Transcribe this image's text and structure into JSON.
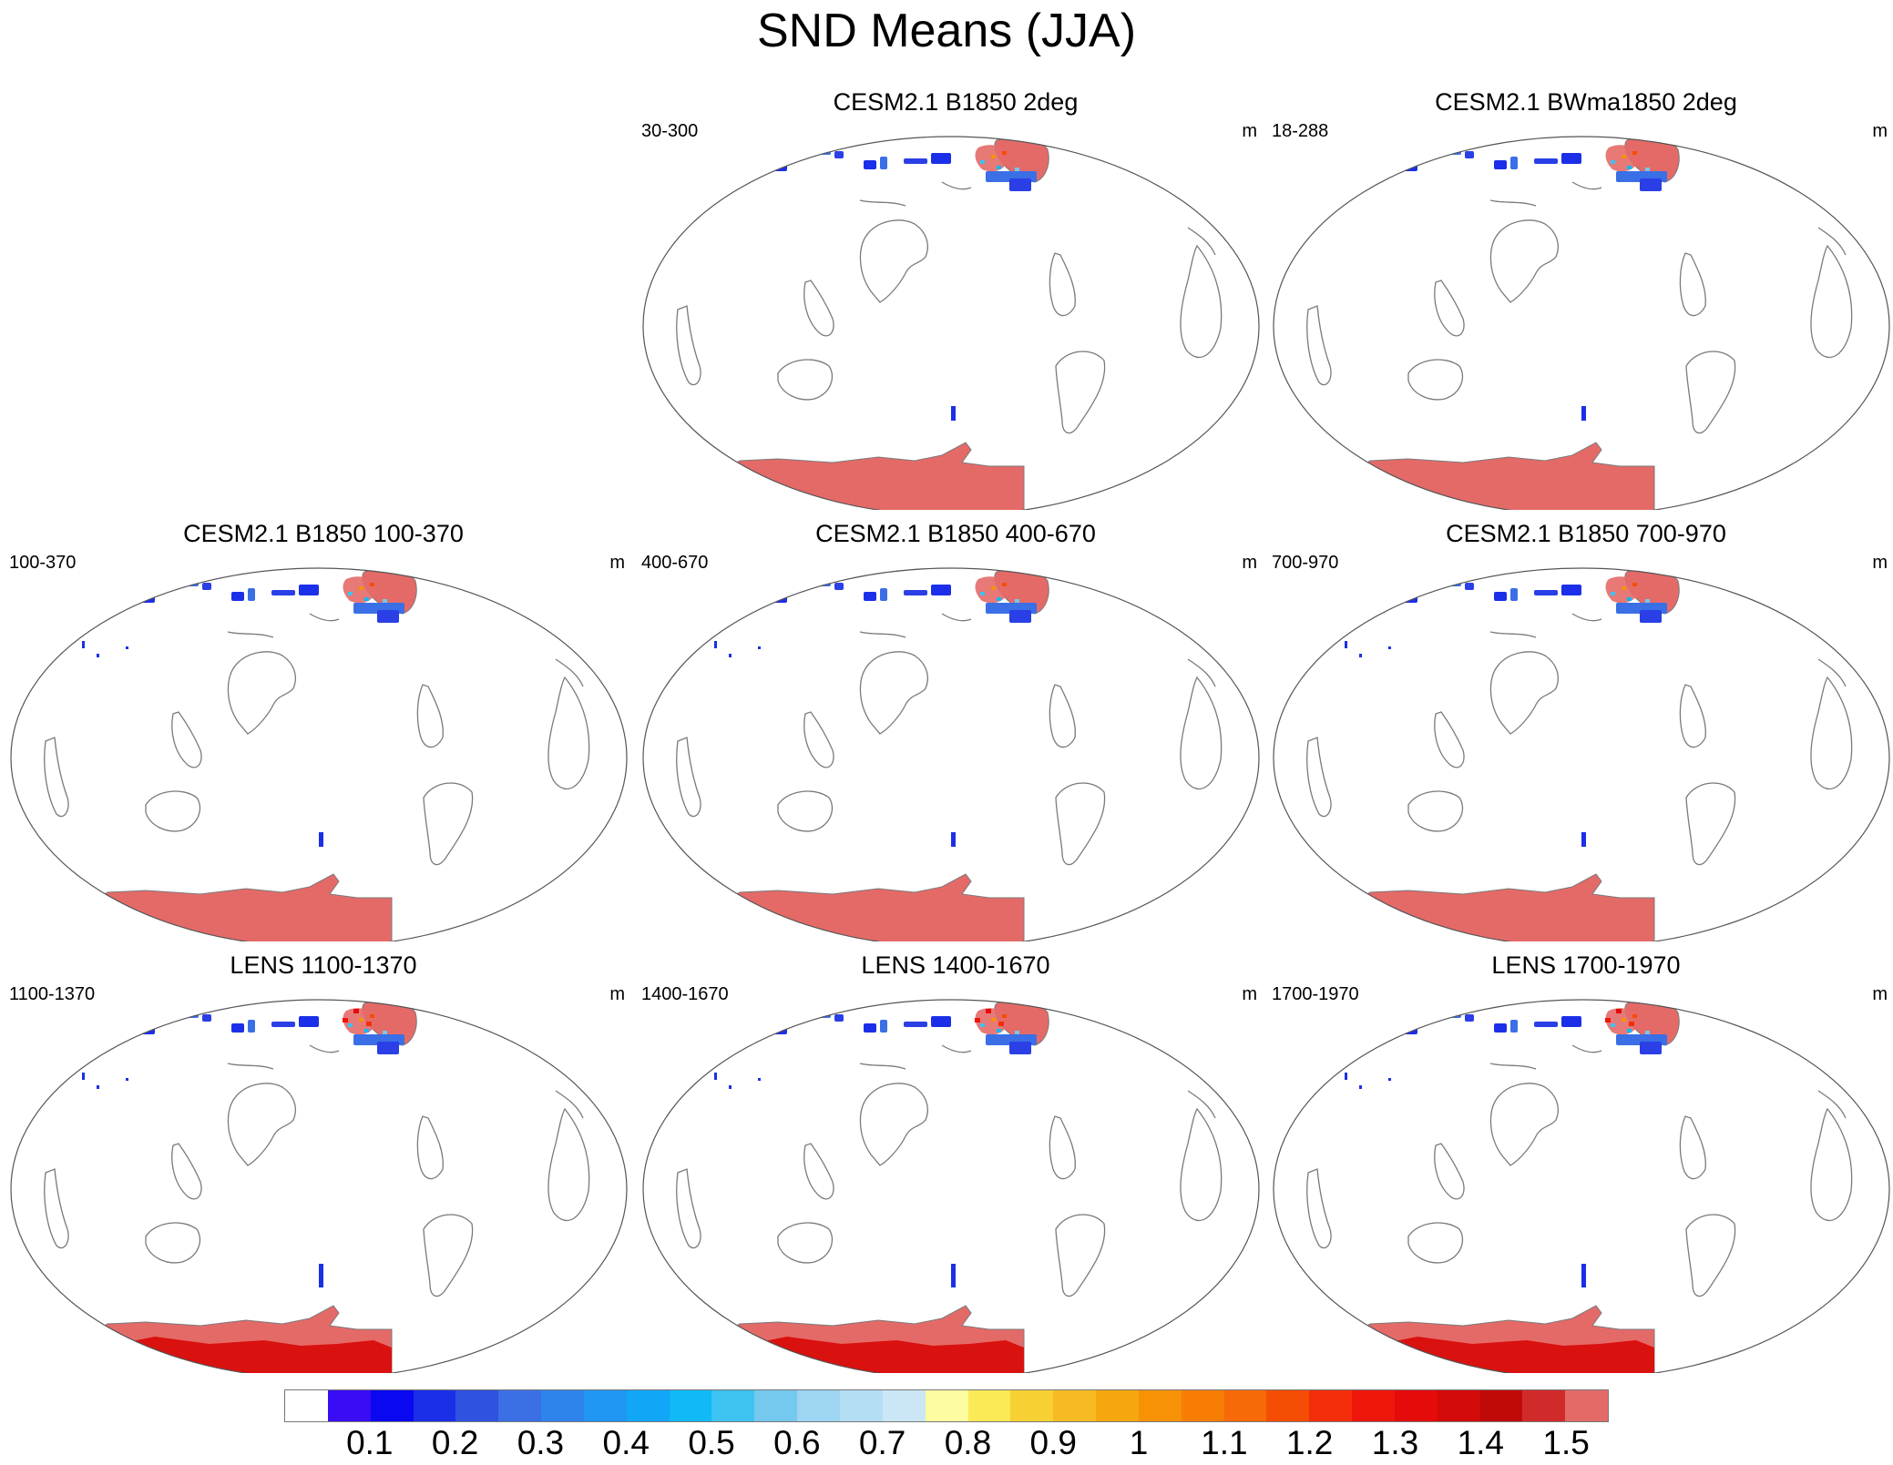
{
  "title": "SND Means (JJA)",
  "panels": [
    {
      "title": "",
      "range": "",
      "units": "",
      "empty": true
    },
    {
      "title": "CESM2.1 B1850 2deg",
      "range": "30-300",
      "units": "m",
      "variant": "A"
    },
    {
      "title": "CESM2.1 BWma1850 2deg",
      "range": "18-288",
      "units": "m",
      "variant": "A"
    },
    {
      "title": "CESM2.1 B1850 100-370",
      "range": "100-370",
      "units": "m",
      "variant": "B"
    },
    {
      "title": "CESM2.1 B1850 400-670",
      "range": "400-670",
      "units": "m",
      "variant": "B"
    },
    {
      "title": "CESM2.1 B1850 700-970",
      "range": "700-970",
      "units": "m",
      "variant": "B"
    },
    {
      "title": "LENS 1100-1370",
      "range": "1100-1370",
      "units": "m",
      "variant": "C"
    },
    {
      "title": "LENS 1400-1670",
      "range": "1400-1670",
      "units": "m",
      "variant": "C"
    },
    {
      "title": "LENS 1700-1970",
      "range": "1700-1970",
      "units": "m",
      "variant": "C"
    }
  ],
  "colorbar": {
    "colors": [
      "#ffffff",
      "#3a0cf5",
      "#0a08f0",
      "#1c2fe8",
      "#2f52e0",
      "#3b6fe6",
      "#2f84ec",
      "#1f96f2",
      "#12a6f7",
      "#0fbaf6",
      "#3dc2f2",
      "#75c8ee",
      "#9dd5f2",
      "#b4def4",
      "#cbe7f6",
      "#fefca0",
      "#fbe955",
      "#f7d133",
      "#f6bb22",
      "#f6a70f",
      "#f79207",
      "#f77d05",
      "#f76a07",
      "#f64d05",
      "#f42e0a",
      "#ef160b",
      "#e50b0b",
      "#d20a0a",
      "#c00a0a",
      "#d12a2a",
      "#e46a68"
    ],
    "labels": [
      "0.1",
      "0.2",
      "0.3",
      "0.4",
      "0.5",
      "0.6",
      "0.7",
      "0.8",
      "0.9",
      "1",
      "1.1",
      "1.2",
      "1.3",
      "1.4",
      "1.5"
    ]
  }
}
